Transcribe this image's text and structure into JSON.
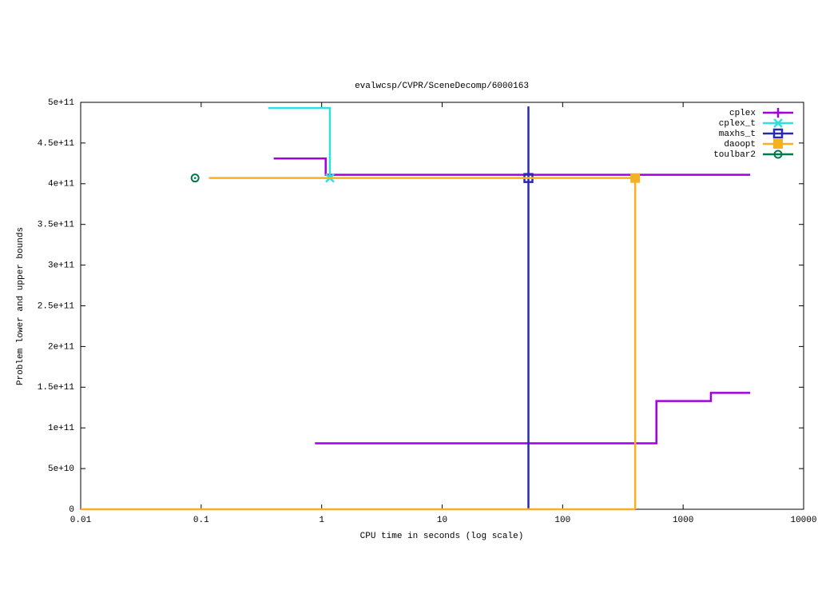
{
  "chart_data": {
    "type": "step",
    "title": "evalwcsp/CVPR/SceneDecomp/6000163",
    "x_label": "CPU time in seconds (log scale)",
    "y_label": "Problem lower and upper bounds",
    "x_log": true,
    "xlim": [
      0.01,
      10000
    ],
    "xticks": [
      0.01,
      0.1,
      1,
      10,
      100,
      1000,
      10000
    ],
    "ylim": [
      0,
      500000000000
    ],
    "yticks": [
      0,
      {
        "value": 50000000000,
        "label": "5e+10"
      },
      {
        "value": 100000000000,
        "label": "1e+11"
      },
      {
        "value": 150000000000,
        "label": "1.5e+11"
      },
      {
        "value": 200000000000,
        "label": "2e+11"
      },
      {
        "value": 250000000000,
        "label": "2.5e+11"
      },
      {
        "value": 300000000000,
        "label": "3e+11"
      },
      {
        "value": 350000000000,
        "label": "3.5e+11"
      },
      {
        "value": 400000000000,
        "label": "4e+11"
      },
      {
        "value": 450000000000,
        "label": "4.5e+11"
      },
      {
        "value": 500000000000,
        "label": "5e+11"
      }
    ],
    "legend": "top-right",
    "series": [
      {
        "name": "cplex",
        "color": "#a000e0",
        "marker_shape": "plus",
        "lines": [
          {
            "x": [
              0.4,
              1.08,
              3600
            ],
            "values": [
              431000000000,
              411000000000,
              411000000000
            ]
          },
          {
            "x": [
              0.88,
              600,
              1700,
              3600
            ],
            "values": [
              81000000000,
              133000000000,
              143000000000,
              143000000000
            ]
          }
        ]
      },
      {
        "name": "cplex_t",
        "color": "#30e0e0",
        "marker_shape": "cross",
        "lines": [
          {
            "x": [
              0.36,
              1.17
            ],
            "values": [
              493000000000,
              407000000000
            ]
          }
        ],
        "markers": [
          {
            "x": 1.17,
            "value": 407000000000
          }
        ]
      },
      {
        "name": "maxhs_t",
        "color": "#2a2ab0",
        "marker_shape": "square",
        "lines": [
          {
            "x": [
              52,
              52
            ],
            "values": [
              0,
              495000000000
            ]
          }
        ],
        "markers": [
          {
            "x": 52,
            "value": 407000000000
          }
        ]
      },
      {
        "name": "daoopt",
        "color": "#f8b020",
        "marker_shape": "filled-square",
        "lines": [
          {
            "x": [
              0.116,
              400,
              400
            ],
            "values": [
              407000000000,
              407000000000,
              0
            ]
          },
          {
            "x": [
              0.01,
              400
            ],
            "values": [
              0,
              0
            ]
          }
        ],
        "markers": [
          {
            "x": 400,
            "value": 407000000000
          }
        ]
      },
      {
        "name": "toulbar2",
        "color": "#007a50",
        "marker_shape": "circle",
        "markers": [
          {
            "x": 0.089,
            "value": 407000000000
          }
        ]
      }
    ]
  }
}
